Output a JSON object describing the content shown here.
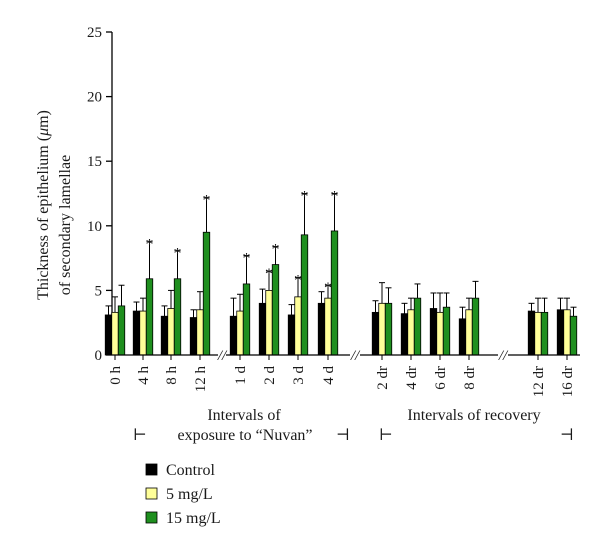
{
  "chart_data": {
    "type": "bar",
    "ylabel_line1": "Thickness of epithelium (",
    "ylabel_mu": "μ",
    "ylabel_line1_end": "m)",
    "ylabel_line2": "of secondary lamellae",
    "ylim": [
      0,
      25
    ],
    "yticks": [
      0,
      5,
      10,
      15,
      20,
      25
    ],
    "grid": false,
    "legend_position": "bottom-left",
    "categories": [
      "0 h",
      "4 h",
      "8 h",
      "12 h",
      "1 d",
      "2 d",
      "3 d",
      "4 d",
      "2 dr",
      "4 dr",
      "6 dr",
      "8 dr",
      "12 dr",
      "16 dr"
    ],
    "series": [
      {
        "name": "Control",
        "color": "#000000",
        "values": [
          3.1,
          3.4,
          3.0,
          2.9,
          3.0,
          4.0,
          3.1,
          4.0,
          3.3,
          3.2,
          3.6,
          2.8,
          3.4,
          3.5
        ],
        "errors": [
          0.7,
          0.7,
          0.8,
          0.6,
          1.4,
          1.1,
          0.8,
          0.9,
          0.9,
          0.8,
          1.2,
          0.9,
          0.6,
          0.9
        ],
        "significant": [
          false,
          false,
          false,
          false,
          false,
          false,
          false,
          false,
          false,
          false,
          false,
          false,
          false,
          false
        ]
      },
      {
        "name": "5 mg/L",
        "color": "#ffff99",
        "values": [
          3.3,
          3.4,
          3.6,
          3.5,
          3.4,
          5.0,
          4.5,
          4.4,
          4.0,
          3.5,
          3.3,
          3.5,
          3.3,
          3.5
        ],
        "errors": [
          1.2,
          1.0,
          1.4,
          1.4,
          1.3,
          1.5,
          1.5,
          1.0,
          1.6,
          0.9,
          1.5,
          0.9,
          1.1,
          0.9
        ],
        "significant": [
          false,
          false,
          false,
          false,
          false,
          true,
          true,
          true,
          false,
          false,
          false,
          false,
          false,
          false
        ]
      },
      {
        "name": "15 mg/L",
        "color": "#1f8f1f",
        "values": [
          3.8,
          5.9,
          5.9,
          9.5,
          5.5,
          7.0,
          9.3,
          9.6,
          4.0,
          4.4,
          3.7,
          4.4,
          3.3,
          3.0
        ],
        "errors": [
          1.6,
          2.9,
          2.2,
          2.7,
          2.2,
          1.4,
          3.2,
          2.9,
          1.2,
          1.1,
          1.1,
          1.3,
          1.1,
          0.7
        ],
        "significant": [
          false,
          true,
          true,
          true,
          true,
          true,
          true,
          true,
          false,
          false,
          false,
          false,
          false,
          false
        ]
      }
    ],
    "group_labels": [
      {
        "line1": "Intervals of",
        "line2": "exposure to “Nuvan”",
        "from": 0,
        "to": 7
      },
      {
        "line1": "Intervals of recovery",
        "line2": "",
        "from": 8,
        "to": 13
      }
    ],
    "significance_mark": "*",
    "axis_break_mark": "//",
    "bracket_left": "⊢",
    "bracket_right": "⊣"
  }
}
